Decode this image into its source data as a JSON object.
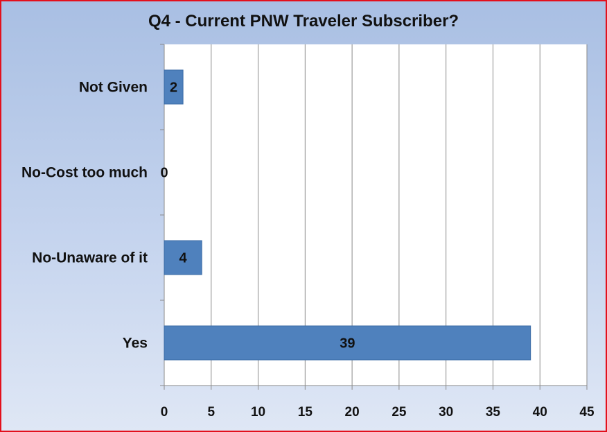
{
  "chart_data": {
    "type": "bar",
    "orientation": "horizontal",
    "title": "Q4 - Current PNW Traveler Subscriber?",
    "categories": [
      "Not Given",
      "No-Cost too much",
      "No-Unaware of it",
      "Yes"
    ],
    "values": [
      2,
      0,
      4,
      39
    ],
    "data_labels": [
      "2",
      "0",
      "4",
      "39"
    ],
    "xlim": [
      0,
      45
    ],
    "x_ticks": [
      "0",
      "5",
      "10",
      "15",
      "20",
      "25",
      "30",
      "35",
      "40",
      "45"
    ],
    "xlabel": "",
    "ylabel": "",
    "grid": "vertical",
    "legend": "none"
  },
  "colors": {
    "bar": "#4f81bd",
    "bar_edge": "#3a6aa5",
    "plot_background": "#ffffff",
    "gridline": "#8a8a8a",
    "border": "#e3101c"
  }
}
